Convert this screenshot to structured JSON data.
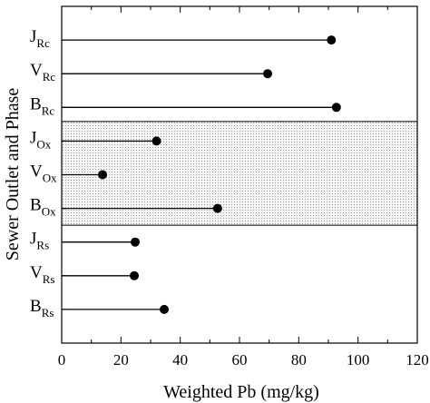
{
  "chart_data": {
    "type": "lollipop",
    "x_label": "Weighted Pb (mg/kg)",
    "y_label": "Sewer Outlet and Phase",
    "categories": [
      [
        "J",
        "Rc"
      ],
      [
        "V",
        "Rc"
      ],
      [
        "B",
        "Rc"
      ],
      [
        "J",
        "Ox"
      ],
      [
        "V",
        "Ox"
      ],
      [
        "B",
        "Ox"
      ],
      [
        "J",
        "Rs"
      ],
      [
        "V",
        "Rs"
      ],
      [
        "B",
        "Rs"
      ]
    ],
    "values": [
      91,
      69.5,
      92.7,
      32,
      13.8,
      52.6,
      24.8,
      24.5,
      34.6
    ],
    "color": "#000000",
    "xlim": [
      0,
      120
    ],
    "xticks": [
      0,
      20,
      40,
      60,
      80,
      100,
      120
    ]
  }
}
